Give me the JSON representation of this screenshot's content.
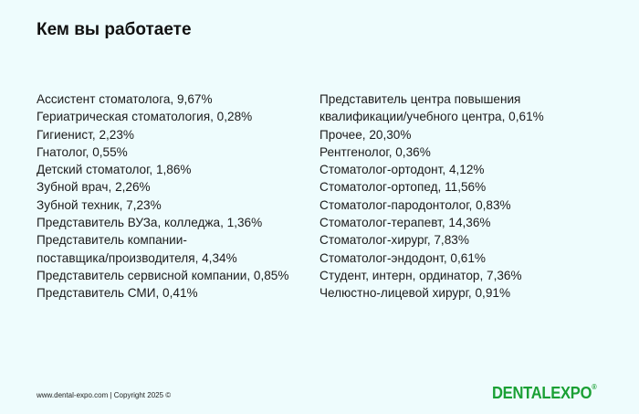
{
  "title": "Кем вы работаете",
  "left_items": [
    "Ассистент стоматолога, 9,67%",
    "Гериатрическая стоматология, 0,28%",
    "Гигиенист, 2,23%",
    "Гнатолог, 0,55%",
    "Детский стоматолог, 1,86%",
    "Зубной врач, 2,26%",
    "Зубной техник, 7,23%",
    "Представитель ВУЗа, колледжа, 1,36%",
    "Представитель компании-\nпоставщика/производителя, 4,34%",
    "Представитель сервисной компании, 0,85%",
    "Представитель СМИ, 0,41%"
  ],
  "right_items": [
    "Представитель центра повышения\nквалификации/учебного центра, 0,61%",
    "Прочее, 20,30%",
    "Рентгенолог, 0,36%",
    "Стоматолог-ортодонт, 4,12%",
    "Стоматолог-ортопед, 11,56%",
    "Стоматолог-пародонтолог, 0,83%",
    "Стоматолог-терапевт, 14,36%",
    "Стоматолог-хирург, 7,83%",
    "Стоматолог-эндодонт, 0,61%",
    "Студент, интерн, ординатор, 7,36%",
    "Челюстно-лицевой хирург, 0,91%"
  ],
  "footer": "www.dental-expo.com | Copyright 2025 ©",
  "logo": {
    "text": "DENTALEXPO",
    "mark": "®",
    "color": "#1aa034"
  }
}
